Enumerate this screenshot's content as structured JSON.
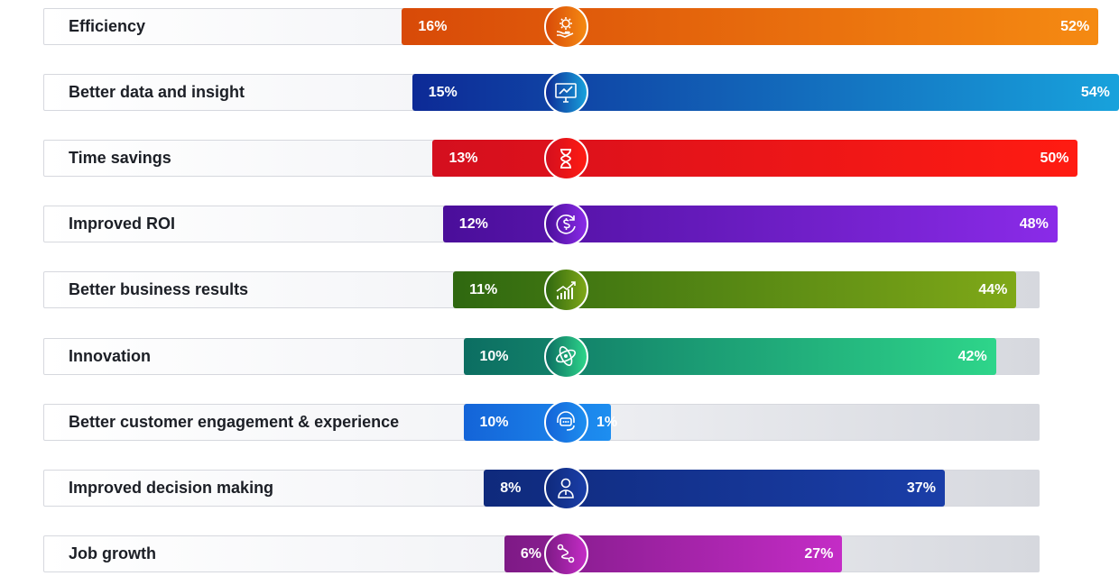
{
  "chart_data": {
    "type": "bar",
    "orientation": "horizontal",
    "rows": [
      {
        "label": "Efficiency",
        "value_low": 16,
        "value_high": 52,
        "low_label": "16%",
        "high_label": "52%",
        "icon": "gear-hand-icon",
        "color_start": "#d84a08",
        "color_end": "#f58a12"
      },
      {
        "label": "Better data and insight",
        "value_low": 15,
        "value_high": 54,
        "low_label": "15%",
        "high_label": "54%",
        "icon": "monitor-chart-icon",
        "color_start": "#0d2a96",
        "color_end": "#18a2dc"
      },
      {
        "label": "Time savings",
        "value_low": 13,
        "value_high": 50,
        "low_label": "13%",
        "high_label": "50%",
        "icon": "hourglass-icon",
        "color_start": "#d40f1e",
        "color_end": "#ff1b12"
      },
      {
        "label": "Improved ROI",
        "value_low": 12,
        "value_high": 48,
        "low_label": "12%",
        "high_label": "48%",
        "icon": "dollar-cycle-icon",
        "color_start": "#4a0e9a",
        "color_end": "#8a2be8"
      },
      {
        "label": "Better business results",
        "value_low": 11,
        "value_high": 44,
        "low_label": "11%",
        "high_label": "44%",
        "icon": "growth-chart-icon",
        "color_start": "#2f6810",
        "color_end": "#7fa818"
      },
      {
        "label": "Innovation",
        "value_low": 10,
        "value_high": 42,
        "low_label": "10%",
        "high_label": "42%",
        "icon": "orbit-icon",
        "color_start": "#0c6e62",
        "color_end": "#2ed58a"
      },
      {
        "label": "Better customer engagement & experience",
        "value_low": 10,
        "value_high": 1,
        "low_label": "10%",
        "high_label": "1%",
        "icon": "headset-chat-icon",
        "color_start": "#1464d8",
        "color_end": "#1d8ef0"
      },
      {
        "label": "Improved decision making",
        "value_low": 8,
        "value_high": 37,
        "low_label": "8%",
        "high_label": "37%",
        "icon": "person-icon",
        "color_start": "#0f2a7c",
        "color_end": "#1a3ea8"
      },
      {
        "label": "Job growth",
        "value_low": 6,
        "value_high": 27,
        "low_label": "6%",
        "high_label": "27%",
        "icon": "path-nodes-icon",
        "color_start": "#7e1a86",
        "color_end": "#c42cc6"
      }
    ]
  }
}
